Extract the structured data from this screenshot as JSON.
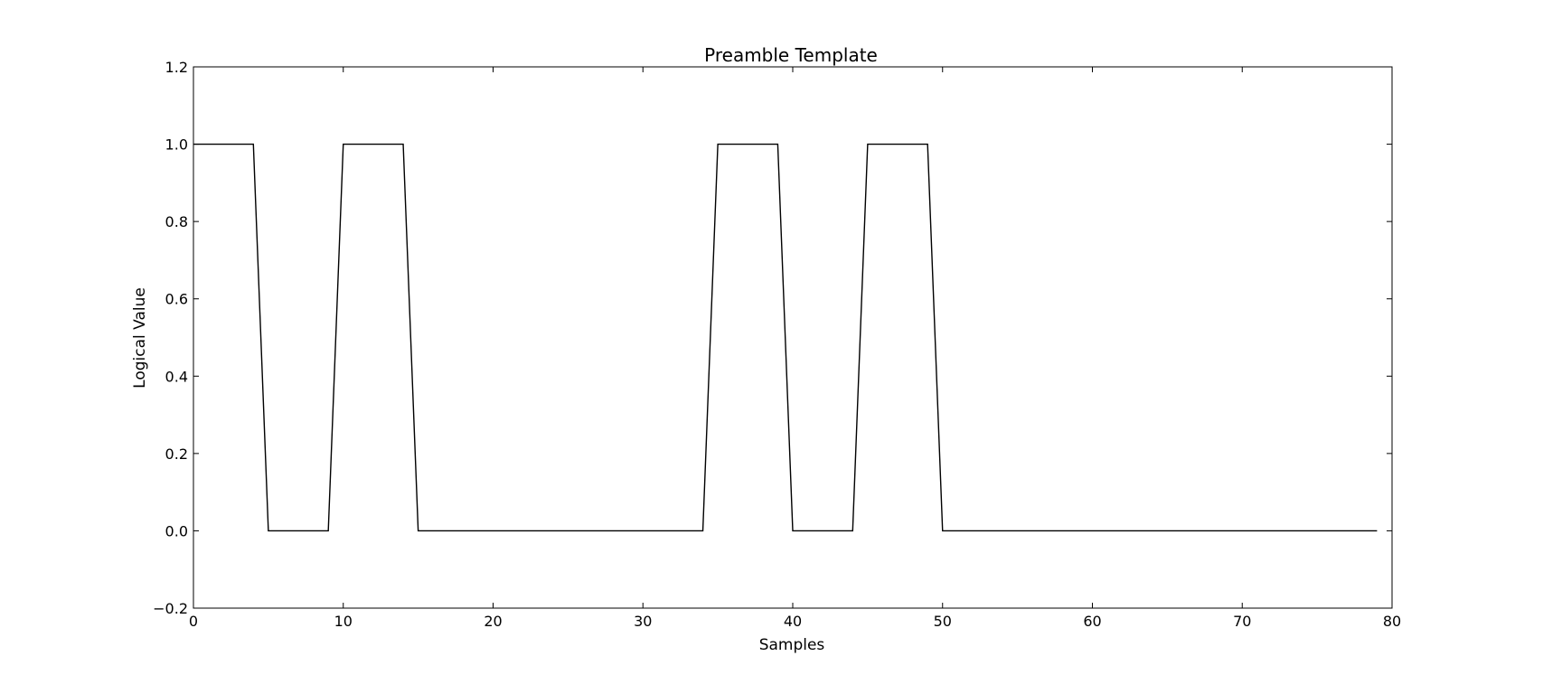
{
  "chart_data": {
    "type": "line",
    "title": "Preamble Template",
    "xlabel": "Samples",
    "ylabel": "Logical Value",
    "xlim": [
      0,
      80
    ],
    "ylim": [
      -0.2,
      1.2
    ],
    "xticks": [
      0,
      10,
      20,
      30,
      40,
      50,
      60,
      70,
      80
    ],
    "xtick_labels": [
      "0",
      "10",
      "20",
      "30",
      "40",
      "50",
      "60",
      "70",
      "80"
    ],
    "yticks": [
      -0.2,
      0.0,
      0.2,
      0.4,
      0.6,
      0.8,
      1.0,
      1.2
    ],
    "ytick_labels": [
      "−0.2",
      "0.0",
      "0.2",
      "0.4",
      "0.6",
      "0.8",
      "1.0",
      "1.2"
    ],
    "grid": false,
    "line_color": "#000000",
    "series": [
      {
        "x": [
          0,
          1,
          2,
          3,
          4,
          5,
          6,
          7,
          8,
          9,
          10,
          11,
          12,
          13,
          14,
          15,
          16,
          17,
          18,
          19,
          20,
          21,
          22,
          23,
          24,
          25,
          26,
          27,
          28,
          29,
          30,
          31,
          32,
          33,
          34,
          35,
          36,
          37,
          38,
          39,
          40,
          41,
          42,
          43,
          44,
          45,
          46,
          47,
          48,
          49,
          50,
          51,
          52,
          53,
          54,
          55,
          56,
          57,
          58,
          59,
          60,
          61,
          62,
          63,
          64,
          65,
          66,
          67,
          68,
          69,
          70,
          71,
          72,
          73,
          74,
          75,
          76,
          77,
          78,
          79
        ],
        "values": [
          1,
          1,
          1,
          1,
          1,
          0,
          0,
          0,
          0,
          0,
          1,
          1,
          1,
          1,
          1,
          0,
          0,
          0,
          0,
          0,
          0,
          0,
          0,
          0,
          0,
          0,
          0,
          0,
          0,
          0,
          0,
          0,
          0,
          0,
          0,
          1,
          1,
          1,
          1,
          1,
          0,
          0,
          0,
          0,
          0,
          1,
          1,
          1,
          1,
          1,
          0,
          0,
          0,
          0,
          0,
          0,
          0,
          0,
          0,
          0,
          0,
          0,
          0,
          0,
          0,
          0,
          0,
          0,
          0,
          0,
          0,
          0,
          0,
          0,
          0,
          0,
          0,
          0,
          0,
          0
        ]
      }
    ]
  }
}
